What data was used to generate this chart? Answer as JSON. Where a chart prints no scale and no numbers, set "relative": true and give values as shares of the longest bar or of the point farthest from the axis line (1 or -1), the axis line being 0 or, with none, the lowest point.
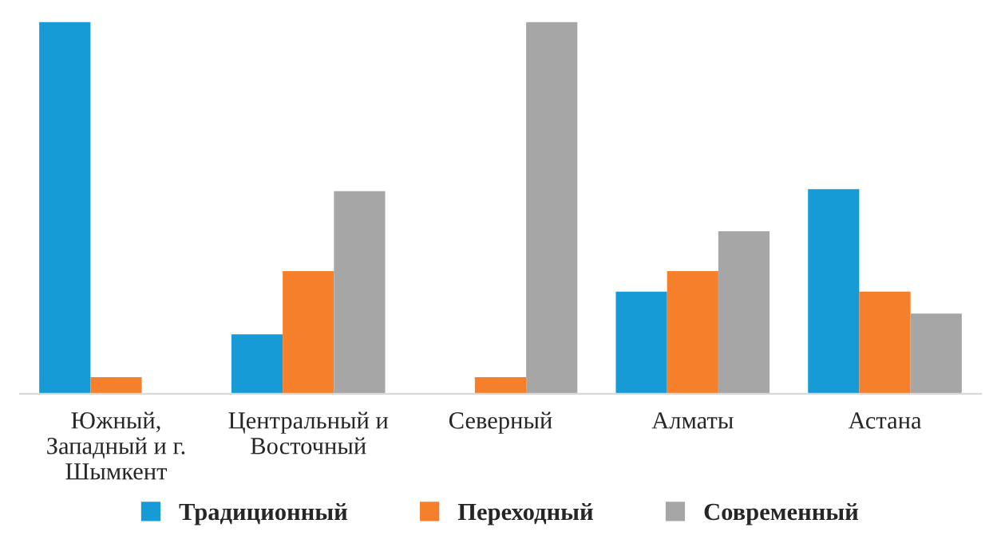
{
  "chart_data": {
    "type": "bar",
    "relative": true,
    "categories": [
      "Южный,\nЗападный и г.\nШымкент",
      "Центральный и\nВосточный",
      "Северный",
      "Алматы",
      "Астана"
    ],
    "series": [
      {
        "name": "Традиционный",
        "color": "#179bd7",
        "values": [
          1.0,
          0.16,
          null,
          0.275,
          0.55
        ]
      },
      {
        "name": "Переходный",
        "color": "#f57f2a",
        "values": [
          0.045,
          0.33,
          0.045,
          0.33,
          0.275
        ]
      },
      {
        "name": "Современный",
        "color": "#a6a6a6",
        "values": [
          null,
          0.545,
          1.0,
          0.437,
          0.216
        ]
      }
    ],
    "legend": "bottom",
    "grid": false
  }
}
